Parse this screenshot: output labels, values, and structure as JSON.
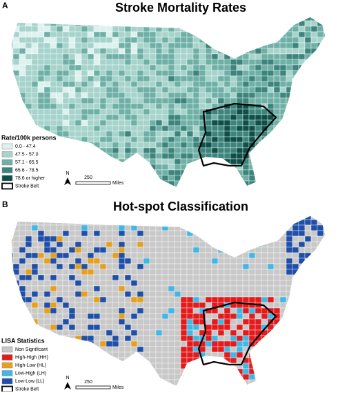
{
  "panels": [
    {
      "label": "A",
      "title": "Stroke Mortality Rates",
      "legend": {
        "title": "Rate/100k persons",
        "items": [
          {
            "label": "0.0 - 47.4",
            "color": "#ddf1ee"
          },
          {
            "label": "47.5 - 57.0",
            "color": "#a6d3cb"
          },
          {
            "label": "57.1 - 65.5",
            "color": "#6fb0a6"
          },
          {
            "label": "65.6 - 78.5",
            "color": "#3d857c"
          },
          {
            "label": "78.6 or higher",
            "color": "#0f4f49"
          },
          {
            "label": "Stroke Belt",
            "color": "#ffffff",
            "outline": true
          }
        ]
      },
      "scale": {
        "north": "N",
        "distance": "250",
        "unit": "Miles"
      }
    },
    {
      "label": "B",
      "title": "Hot-spot Classification",
      "legend": {
        "title": "LISA Statistics",
        "items": [
          {
            "label": "Non Significant",
            "color": "#c8c8c8"
          },
          {
            "label": "High-High (HH)",
            "color": "#e41a1c"
          },
          {
            "label": "High-Low (HL)",
            "color": "#e6a01e"
          },
          {
            "label": "Low-High (LH)",
            "color": "#3fb8e6"
          },
          {
            "label": "Low-Low (LL)",
            "color": "#1f4fa8"
          },
          {
            "label": "Stroke Belt",
            "color": "#ffffff",
            "outline": true
          }
        ]
      },
      "scale": {
        "north": "N",
        "distance": "250",
        "unit": "Miles"
      }
    }
  ]
}
